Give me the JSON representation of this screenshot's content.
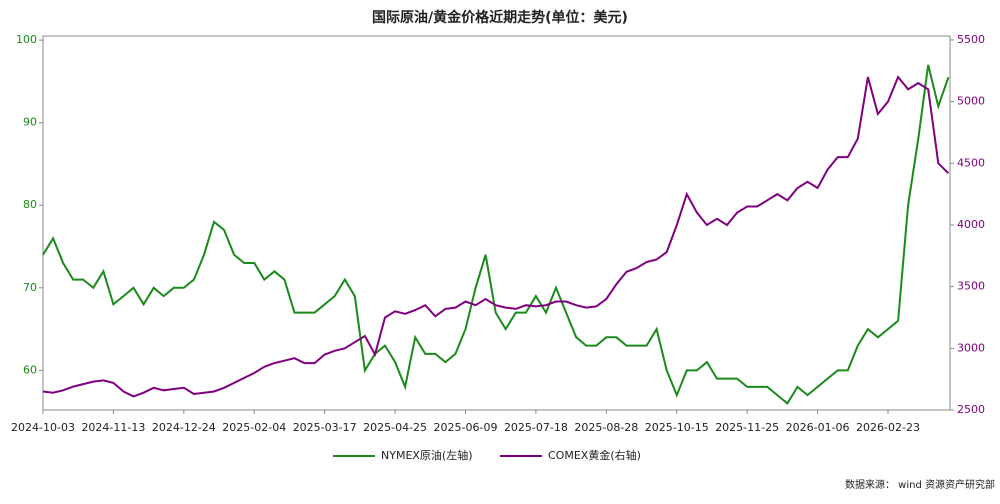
{
  "chart_data": {
    "type": "line",
    "title": "国际原油/黄金价格近期走势(单位：美元)",
    "source": "数据来源： wind  资源资产研究部",
    "categories": [
      "2024-10-03",
      null,
      null,
      null,
      null,
      null,
      null,
      "2024-11-13",
      null,
      null,
      null,
      null,
      null,
      null,
      "2024-12-24",
      null,
      null,
      null,
      null,
      null,
      null,
      "2025-02-04",
      null,
      null,
      null,
      null,
      null,
      null,
      "2025-03-17",
      null,
      null,
      null,
      null,
      null,
      null,
      "2025-04-25",
      null,
      null,
      null,
      null,
      null,
      null,
      "2025-06-09",
      null,
      null,
      null,
      null,
      null,
      null,
      "2025-07-18",
      null,
      null,
      null,
      null,
      null,
      null,
      "2025-08-28",
      null,
      null,
      null,
      null,
      null,
      null,
      "2025-10-15",
      null,
      null,
      null,
      null,
      null,
      null,
      "2025-11-25",
      null,
      null,
      null,
      null,
      null,
      null,
      "2026-01-06",
      null,
      null,
      null,
      null,
      null,
      null,
      "2026-02-23",
      null,
      null,
      null,
      null,
      null,
      null
    ],
    "series": [
      {
        "name": "NYMEX原油(左轴)",
        "color": "#1a8a1a",
        "axis": "y",
        "values": [
          74,
          76,
          73,
          71,
          71,
          70,
          72,
          68,
          69,
          70,
          68,
          70,
          69,
          70,
          70,
          71,
          74,
          78,
          77,
          74,
          73,
          73,
          71,
          72,
          71,
          67,
          67,
          67,
          68,
          69,
          71,
          69,
          60,
          62,
          63,
          61,
          58,
          64,
          62,
          62,
          61,
          62,
          65,
          70,
          74,
          67,
          65,
          67,
          67,
          69,
          67,
          70,
          67,
          64,
          63,
          63,
          64,
          64,
          63,
          63,
          63,
          65,
          60,
          57,
          60,
          60,
          61,
          59,
          59,
          59,
          58,
          58,
          58,
          57,
          56,
          58,
          57,
          58,
          59,
          60,
          60,
          63,
          65,
          64,
          65,
          66,
          80,
          88,
          97,
          92,
          95.5
        ]
      },
      {
        "name": "COMEX黄金(右轴)",
        "color": "#800080",
        "axis": "y2",
        "values": [
          2650,
          2640,
          2660,
          2690,
          2710,
          2730,
          2740,
          2720,
          2650,
          2610,
          2640,
          2680,
          2660,
          2670,
          2680,
          2630,
          2640,
          2650,
          2680,
          2720,
          2760,
          2800,
          2850,
          2880,
          2900,
          2920,
          2880,
          2880,
          2950,
          2980,
          3000,
          3050,
          3100,
          2950,
          3250,
          3300,
          3280,
          3310,
          3350,
          3260,
          3320,
          3330,
          3380,
          3350,
          3400,
          3350,
          3330,
          3320,
          3350,
          3340,
          3350,
          3380,
          3380,
          3350,
          3330,
          3340,
          3400,
          3520,
          3620,
          3650,
          3700,
          3720,
          3780,
          4000,
          4250,
          4100,
          4000,
          4050,
          4000,
          4100,
          4150,
          4150,
          4200,
          4250,
          4200,
          4300,
          4350,
          4300,
          4450,
          4550,
          4550,
          4700,
          5200,
          4900,
          5000,
          5200,
          5100,
          5150,
          5100,
          4500,
          4420
        ]
      }
    ],
    "ylim": [
      55.2,
      100.5
    ],
    "yticks": [
      60,
      70,
      80,
      90,
      100
    ],
    "y2lim": [
      2500,
      5532
    ],
    "y2ticks": [
      2500,
      3000,
      3500,
      4000,
      4500,
      5000,
      5500
    ],
    "grid": false
  }
}
